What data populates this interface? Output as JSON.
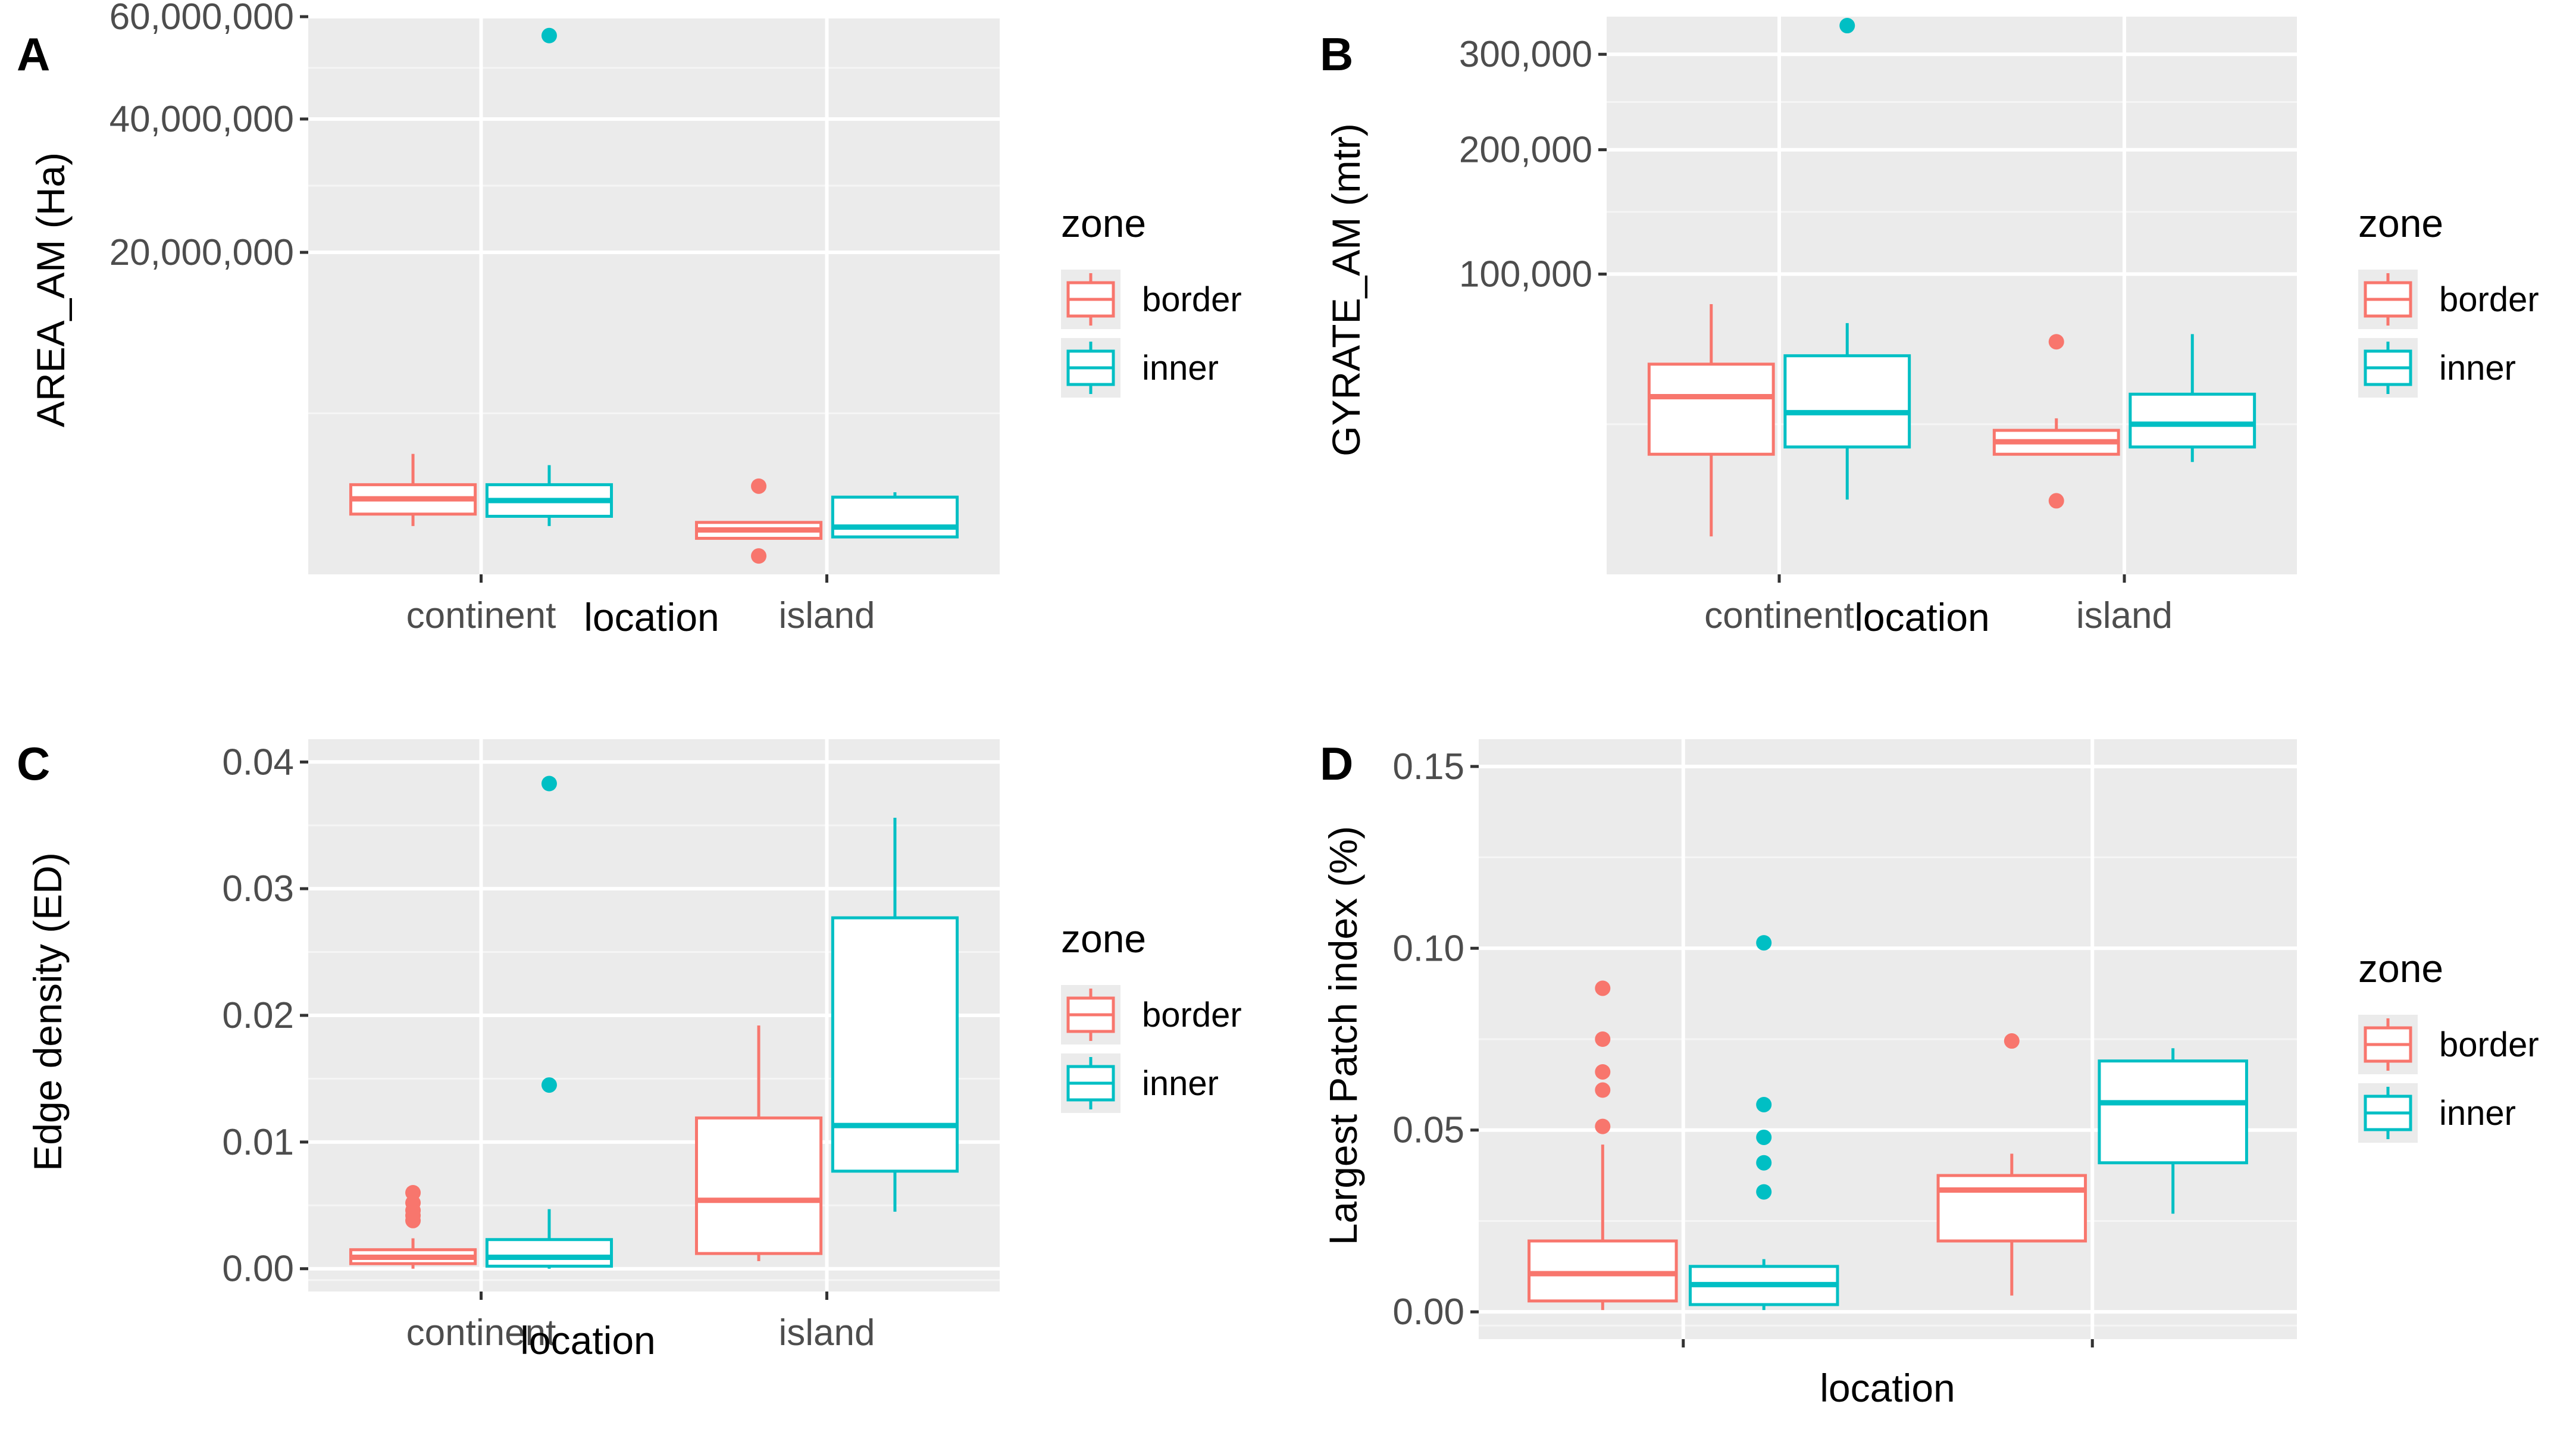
{
  "chart_data": [
    {
      "panel": "A",
      "type": "boxplot",
      "xlabel": "location",
      "ylabel": "AREA_AM (Ha)",
      "categories": [
        "continent",
        "island"
      ],
      "y_scale": "sqrt",
      "ylim": [
        0,
        60000000
      ],
      "yticks": [
        20000000,
        40000000,
        60000000
      ],
      "ytick_labels": [
        "20,000,000",
        "40,000,000",
        "60,000,000"
      ],
      "legend": {
        "title": "zone",
        "entries": [
          "border",
          "inner"
        ]
      },
      "series": [
        {
          "name": "border",
          "boxes": [
            {
              "category": "continent",
              "q1": 700000,
              "median": 1100000,
              "q3": 1550000,
              "lower_whisker": 450000,
              "upper_whisker": 2800000,
              "outliers": []
            },
            {
              "category": "island",
              "q1": 250000,
              "median": 380000,
              "q3": 520000,
              "lower_whisker": 250000,
              "upper_whisker": 520000,
              "outliers": [
                1500000,
                65000
              ]
            }
          ]
        },
        {
          "name": "inner",
          "boxes": [
            {
              "category": "continent",
              "q1": 650000,
              "median": 1050000,
              "q3": 1550000,
              "lower_whisker": 450000,
              "upper_whisker": 2300000,
              "outliers": [
                56000000
              ]
            },
            {
              "category": "island",
              "q1": 270000,
              "median": 430000,
              "q3": 1150000,
              "lower_whisker": 270000,
              "upper_whisker": 1300000,
              "outliers": []
            }
          ]
        }
      ]
    },
    {
      "panel": "B",
      "type": "boxplot",
      "xlabel": "location",
      "ylabel": "GYRATE_AM (mtr)",
      "categories": [
        "continent",
        "island"
      ],
      "y_scale": "sqrt",
      "ylim": [
        0,
        345000
      ],
      "yticks": [
        100000,
        200000,
        300000
      ],
      "ytick_labels": [
        "100,000",
        "200,000",
        "300,000"
      ],
      "legend": {
        "title": "zone",
        "entries": [
          "border",
          "inner"
        ]
      },
      "series": [
        {
          "name": "border",
          "boxes": [
            {
              "category": "continent",
              "q1": 16000,
              "median": 35000,
              "q3": 49000,
              "lower_whisker": 1600,
              "upper_whisker": 81000,
              "outliers": []
            },
            {
              "category": "island",
              "q1": 16000,
              "median": 19500,
              "q3": 23000,
              "lower_whisker": 16000,
              "upper_whisker": 27000,
              "outliers": [
                60000,
                6000
              ]
            }
          ]
        },
        {
          "name": "inner",
          "boxes": [
            {
              "category": "continent",
              "q1": 18000,
              "median": 29000,
              "q3": 53000,
              "lower_whisker": 6200,
              "upper_whisker": 70000,
              "outliers": [
                334000
              ]
            },
            {
              "category": "island",
              "q1": 18000,
              "median": 25000,
              "q3": 36000,
              "lower_whisker": 14000,
              "upper_whisker": 64000,
              "outliers": []
            }
          ]
        }
      ]
    },
    {
      "panel": "C",
      "type": "boxplot",
      "xlabel": "location",
      "ylabel": "Edge density (ED)",
      "categories": [
        "continent",
        "island"
      ],
      "y_scale": "linear",
      "ylim": [
        -0.0018,
        0.0418
      ],
      "yticks": [
        0.0,
        0.01,
        0.02,
        0.03,
        0.04
      ],
      "ytick_labels": [
        "0.00",
        "0.01",
        "0.02",
        "0.03",
        "0.04"
      ],
      "legend": {
        "title": "zone",
        "entries": [
          "border",
          "inner"
        ]
      },
      "series": [
        {
          "name": "border",
          "boxes": [
            {
              "category": "continent",
              "q1": 0.0004,
              "median": 0.0009,
              "q3": 0.0015,
              "lower_whisker": 0.0,
              "upper_whisker": 0.0024,
              "outliers": [
                0.006,
                0.0052,
                0.0046,
                0.0042,
                0.0038
              ]
            },
            {
              "category": "island",
              "q1": 0.0012,
              "median": 0.0054,
              "q3": 0.0119,
              "lower_whisker": 0.0006,
              "upper_whisker": 0.0192,
              "outliers": []
            }
          ]
        },
        {
          "name": "inner",
          "boxes": [
            {
              "category": "continent",
              "q1": 0.0002,
              "median": 0.0009,
              "q3": 0.0023,
              "lower_whisker": 0.0,
              "upper_whisker": 0.0047,
              "outliers": [
                0.0383,
                0.0145
              ]
            },
            {
              "category": "island",
              "q1": 0.0077,
              "median": 0.0113,
              "q3": 0.0277,
              "lower_whisker": 0.0045,
              "upper_whisker": 0.0356,
              "outliers": []
            }
          ]
        }
      ]
    },
    {
      "panel": "D",
      "type": "boxplot",
      "xlabel": "location",
      "ylabel": "Largest Patch index (%)",
      "categories": [
        "",
        ""
      ],
      "y_scale": "linear",
      "ylim": [
        -0.0075,
        0.1575
      ],
      "yticks": [
        0.0,
        0.05,
        0.1,
        0.15
      ],
      "ytick_labels": [
        "0.00",
        "0.05",
        "0.10",
        "0.15"
      ],
      "legend": {
        "title": "zone",
        "entries": [
          "border",
          "inner"
        ]
      },
      "series": [
        {
          "name": "border",
          "boxes": [
            {
              "category": "1",
              "q1": 0.003,
              "median": 0.0105,
              "q3": 0.0195,
              "lower_whisker": 0.0005,
              "upper_whisker": 0.046,
              "outliers": [
                0.089,
                0.075,
                0.066,
                0.061,
                0.051
              ]
            },
            {
              "category": "2",
              "q1": 0.0195,
              "median": 0.0335,
              "q3": 0.0375,
              "lower_whisker": 0.0045,
              "upper_whisker": 0.0435,
              "outliers": [
                0.0745
              ]
            }
          ]
        },
        {
          "name": "inner",
          "boxes": [
            {
              "category": "1",
              "q1": 0.002,
              "median": 0.0075,
              "q3": 0.0125,
              "lower_whisker": 0.0005,
              "upper_whisker": 0.0145,
              "outliers": [
                0.1015,
                0.057,
                0.048,
                0.041,
                0.033
              ]
            },
            {
              "category": "2",
              "q1": 0.041,
              "median": 0.0575,
              "q3": 0.069,
              "lower_whisker": 0.027,
              "upper_whisker": 0.0725,
              "outliers": []
            }
          ]
        }
      ]
    }
  ],
  "colors": {
    "border": "#F8766D",
    "inner": "#00BFC4",
    "panel_bg": "#EBEBEB",
    "grid_major": "#FFFFFF",
    "grid_minor": "#F5F5F5",
    "tick": "#333333"
  }
}
